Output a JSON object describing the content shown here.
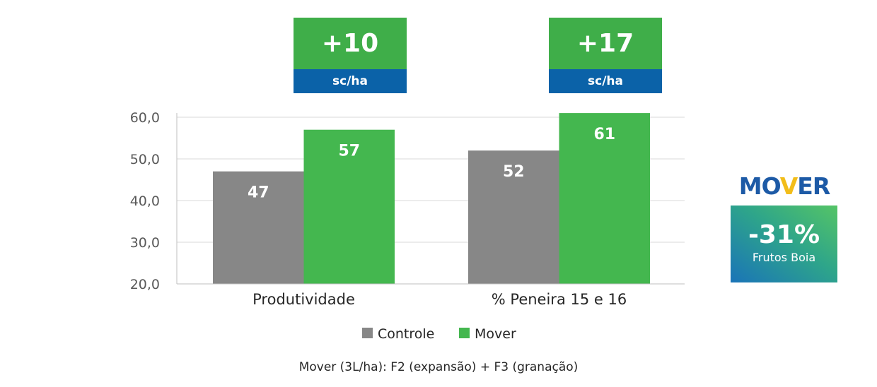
{
  "chart_data": {
    "type": "bar",
    "categories": [
      "Produtividade",
      "% Peneira 15 e 16"
    ],
    "series": [
      {
        "name": "Controle",
        "values": [
          47,
          52
        ],
        "color": "#878787"
      },
      {
        "name": "Mover",
        "values": [
          57,
          61
        ],
        "color": "#44b74f"
      }
    ],
    "ylim": [
      20,
      60
    ],
    "yticks": [
      "20,0",
      "30,0",
      "40,0",
      "50,0",
      "60,0"
    ],
    "ytick_values": [
      20,
      30,
      40,
      50,
      60
    ],
    "data_labels": [
      [
        "47",
        "52"
      ],
      [
        "57",
        "61"
      ]
    ],
    "grid": true,
    "legend_placement": "bottom",
    "footnote": "Mover (3L/ha): F2 (expansão) + F3 (granação)"
  },
  "badges": [
    {
      "value": "+10",
      "unit": "sc/ha"
    },
    {
      "value": "+17",
      "unit": "sc/ha"
    }
  ],
  "logo": {
    "text_a": "MO",
    "text_v": "V",
    "text_b": "ER"
  },
  "highlight": {
    "value": "-31%",
    "label": "Frutos Boia"
  }
}
